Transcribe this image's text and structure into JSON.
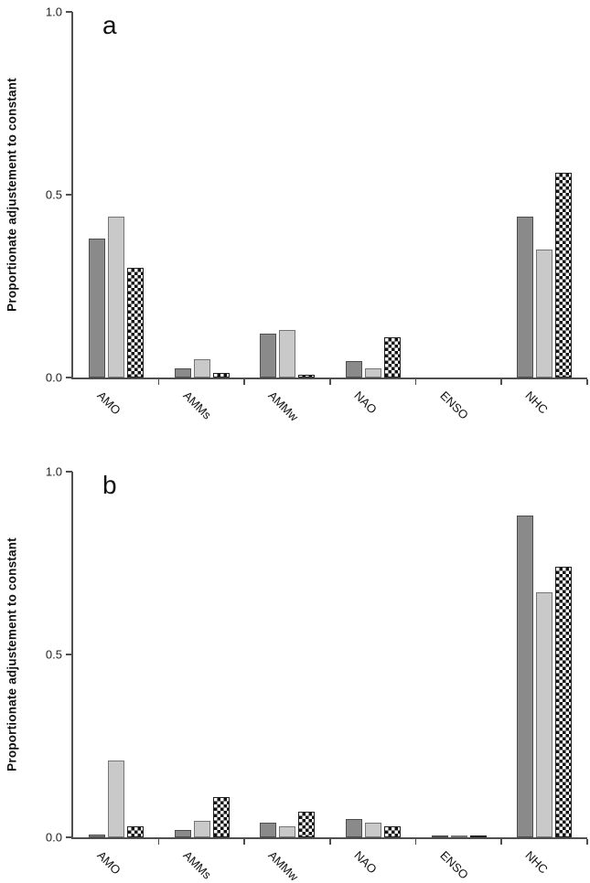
{
  "figure": {
    "background": "#ffffff",
    "series_styles": {
      "dark": {
        "fill": "#8a8a8a",
        "border": "#4d4d4d"
      },
      "light": {
        "fill": "#c9c9c9",
        "border": "#757575"
      },
      "check": {
        "fill": "checkerboard-black-white",
        "border": "#222222"
      }
    },
    "axis_color": "#4f4f4f"
  },
  "chart_data": [
    {
      "panel": "a",
      "type": "bar",
      "title": "",
      "xlabel": "",
      "ylabel": "Proportionate adjustement to constant",
      "ylim": [
        0,
        1
      ],
      "yticks": [
        "0.0",
        "0.5",
        "1.0"
      ],
      "grid": "off",
      "legend": "none",
      "categories": [
        "AMO",
        "AMMs",
        "AMMw",
        "NAO",
        "ENSO",
        "NHC"
      ],
      "series": [
        {
          "name": "series-dark-gray",
          "style": "dark",
          "values": [
            0.38,
            0.025,
            0.12,
            0.045,
            0,
            0.44
          ]
        },
        {
          "name": "series-light-gray",
          "style": "light",
          "values": [
            0.44,
            0.05,
            0.13,
            0.025,
            0,
            0.35
          ]
        },
        {
          "name": "series-checkered",
          "style": "check",
          "values": [
            0.3,
            0.013,
            0.007,
            0.11,
            0,
            0.56
          ]
        }
      ]
    },
    {
      "panel": "b",
      "type": "bar",
      "title": "",
      "xlabel": "",
      "ylabel": "Proportionate adjustement to constant",
      "ylim": [
        0,
        1
      ],
      "yticks": [
        "0.0",
        "0.5",
        "1.0"
      ],
      "grid": "off",
      "legend": "none",
      "categories": [
        "AMO",
        "AMMs",
        "AMMw",
        "NAO",
        "ENSO",
        "NHC"
      ],
      "series": [
        {
          "name": "series-dark-gray",
          "style": "dark",
          "values": [
            0.007,
            0.02,
            0.04,
            0.05,
            0.002,
            0.88
          ]
        },
        {
          "name": "series-light-gray",
          "style": "light",
          "values": [
            0.21,
            0.045,
            0.03,
            0.04,
            0.002,
            0.67
          ]
        },
        {
          "name": "series-checkered",
          "style": "check",
          "values": [
            0.03,
            0.11,
            0.07,
            0.03,
            0.005,
            0.74
          ]
        }
      ]
    }
  ]
}
